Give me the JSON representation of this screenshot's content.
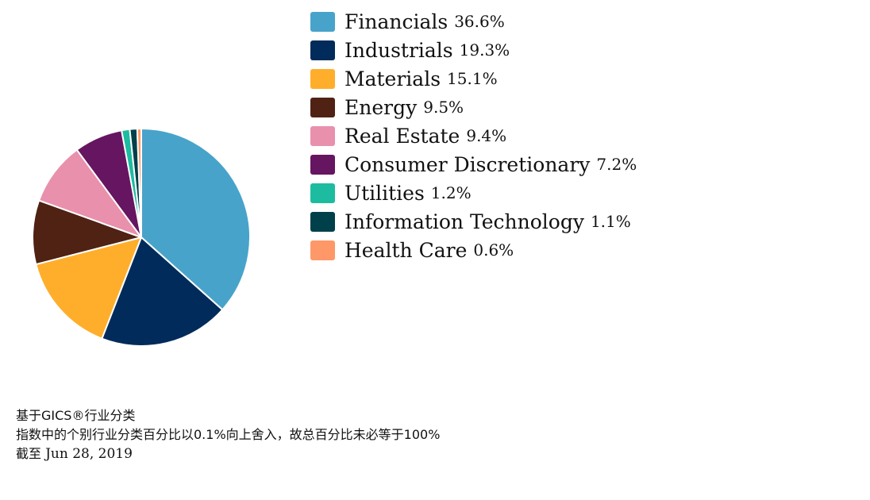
{
  "chart_data": {
    "type": "pie",
    "title": "",
    "slices": [
      {
        "name": "Financials",
        "value": 36.6,
        "label": "36.6%",
        "color": "#48A3CA"
      },
      {
        "name": "Industrials",
        "value": 19.3,
        "label": "19.3%",
        "color": "#002B5A"
      },
      {
        "name": "Materials",
        "value": 15.1,
        "label": "15.1%",
        "color": "#FFAE2C"
      },
      {
        "name": "Energy",
        "value": 9.5,
        "label": "9.5%",
        "color": "#4F2214"
      },
      {
        "name": "Real Estate",
        "value": 9.4,
        "label": "9.4%",
        "color": "#E990AC"
      },
      {
        "name": "Consumer Discretionary",
        "value": 7.2,
        "label": "7.2%",
        "color": "#661560"
      },
      {
        "name": "Utilities",
        "value": 1.2,
        "label": "1.2%",
        "color": "#1DBCA0"
      },
      {
        "name": "Information Technology",
        "value": 1.1,
        "label": "1.1%",
        "color": "#00404A"
      },
      {
        "name": "Health Care",
        "value": 0.6,
        "label": "0.6%",
        "color": "#FF9868"
      }
    ],
    "start_angle": "12 o'clock",
    "direction": "clockwise",
    "legend_position": "right"
  },
  "footnotes": {
    "line1": "基于GICS®行业分类",
    "line2": "指数中的个别行业分类百分比以0.1%向上舍入，故总百分比未必等于100%",
    "date_prefix": "截至 ",
    "date": "Jun 28, 2019"
  }
}
